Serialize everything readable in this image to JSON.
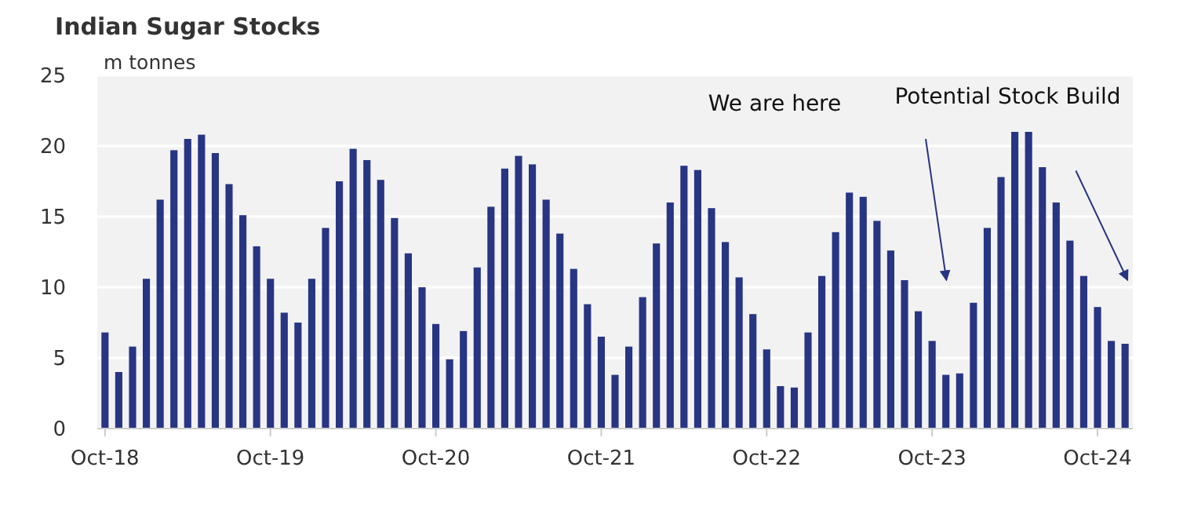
{
  "chart_data": {
    "type": "bar",
    "title": "Indian Sugar Stocks",
    "ylabel": "m tonnes",
    "categories": [
      "Oct-18",
      null,
      null,
      null,
      null,
      null,
      null,
      null,
      null,
      null,
      null,
      null,
      "Oct-19",
      null,
      null,
      null,
      null,
      null,
      null,
      null,
      null,
      null,
      null,
      null,
      "Oct-20",
      null,
      null,
      null,
      null,
      null,
      null,
      null,
      null,
      null,
      null,
      null,
      "Oct-21",
      null,
      null,
      null,
      null,
      null,
      null,
      null,
      null,
      null,
      null,
      null,
      "Oct-22",
      null,
      null,
      null,
      null,
      null,
      null,
      null,
      null,
      null,
      null,
      null,
      "Oct-23",
      null,
      null,
      null,
      null,
      null,
      null,
      null,
      null,
      null,
      null,
      null,
      "Oct-24",
      null,
      null
    ],
    "values": [
      6.8,
      4.0,
      5.8,
      10.6,
      16.2,
      19.7,
      20.5,
      20.8,
      19.5,
      17.3,
      15.1,
      12.9,
      10.6,
      8.2,
      7.5,
      10.6,
      14.2,
      17.5,
      19.8,
      19.0,
      17.6,
      14.9,
      12.4,
      10.0,
      7.4,
      4.9,
      6.9,
      11.4,
      15.7,
      18.4,
      19.3,
      18.7,
      16.2,
      13.8,
      11.3,
      8.8,
      6.5,
      3.8,
      5.8,
      9.3,
      13.1,
      16.0,
      18.6,
      18.3,
      15.6,
      13.2,
      10.7,
      8.1,
      5.6,
      3.0,
      2.9,
      6.8,
      10.8,
      13.9,
      16.7,
      16.4,
      14.7,
      12.6,
      10.5,
      8.3,
      6.2,
      3.8,
      3.9,
      8.9,
      14.2,
      17.8,
      21.0,
      21.0,
      18.5,
      16.0,
      13.3,
      10.8,
      8.6,
      6.2,
      6.0
    ],
    "color": "#283583",
    "ylim": [
      0,
      25
    ],
    "yticks": [
      0,
      5,
      10,
      15,
      20,
      25
    ],
    "grid": "y",
    "annotations": [
      "We are here",
      "Potential Stock Build"
    ]
  }
}
